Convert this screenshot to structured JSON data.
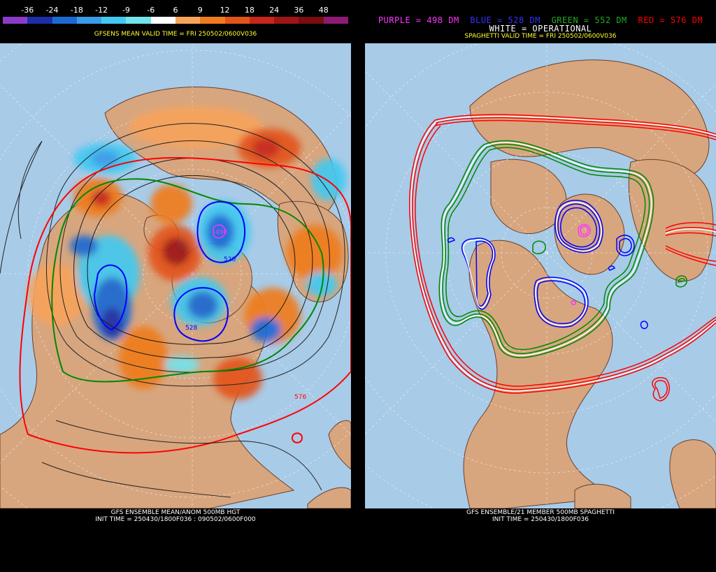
{
  "left": {
    "colorbar": {
      "labels": [
        "-36",
        "-24",
        "-18",
        "-12",
        "-9",
        "-6",
        "6",
        "9",
        "12",
        "18",
        "24",
        "36",
        "48"
      ],
      "colors": [
        "#8a3cc9",
        "#1c2fa8",
        "#1c6bd4",
        "#3a9be8",
        "#43c9f0",
        "#73e3ec",
        "#ffffff",
        "#f7a35c",
        "#ef7b1f",
        "#e3541a",
        "#c7271b",
        "#9e1515",
        "#7a0d0d",
        "#8e1a75"
      ]
    },
    "title": "GFSENS MEAN VALID TIME = FRI 250502/0600V036",
    "caption_line1": "GFS ENSEMBLE MEAN/ANOM 500MB HGT",
    "caption_line2": "INIT TIME = 250430/1800F036 : 090502/0600F000",
    "contour_labels": {
      "l498": "498",
      "l520": "520",
      "l528": "528",
      "l576": "576"
    }
  },
  "right": {
    "legend": {
      "purple": "PURPLE = 498 DM",
      "blue": "BLUE = 528 DM",
      "green": "GREEN = 552 DM",
      "red": "RED = 576 DM"
    },
    "operational": "WHITE = OPERATIONAL",
    "title": "SPAGHETTI VALID TIME = FRI 250502/0600V036",
    "caption_line1": "GFS ENSEMBLE/21 MEMBER 500MB SPAGHETTI",
    "caption_line2": "INIT TIME = 250430/1800F036"
  },
  "colors": {
    "ocean": "#a8cbe8",
    "land": "#d7a67f",
    "border": "#6b3f2a",
    "grid": "#ffffff",
    "purple": "#ff33ff",
    "blue": "#0000ff",
    "green": "#008800",
    "red": "#ff0000",
    "legend_blue": "#3333ff",
    "legend_green": "#22aa22"
  }
}
